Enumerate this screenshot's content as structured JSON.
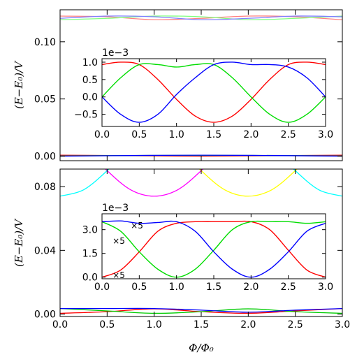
{
  "figure": {
    "xlabel": "Φ/Φ₀",
    "ylabel_top": "(E−E₀)/V",
    "ylabel_bottom": "(E−E₀)/V"
  },
  "chart_data": [
    {
      "type": "line",
      "panel": "top-main",
      "xlim": [
        0,
        3
      ],
      "ylim": [
        -0.004,
        0.128
      ],
      "yticks": [
        "0.00",
        "0.05",
        "0.10"
      ],
      "xticklabels_shown": false,
      "series": [
        {
          "color": "#ff8080",
          "x": [
            0,
            0.5,
            1,
            1.5,
            2,
            2.5,
            3
          ],
          "y": [
            0.1225,
            0.1219,
            0.1193,
            0.1205,
            0.1225,
            0.1219,
            0.1193
          ]
        },
        {
          "color": "#80ff80",
          "x": [
            0,
            0.5,
            1,
            1.5,
            2,
            2.5,
            3
          ],
          "y": [
            0.1193,
            0.1205,
            0.1225,
            0.1219,
            0.1193,
            0.1205,
            0.1225
          ]
        },
        {
          "color": "#8080ff",
          "x": [
            0,
            0.5,
            1,
            1.5,
            2,
            2.5,
            3
          ],
          "y": [
            0.1205,
            0.1225,
            0.1219,
            0.1193,
            0.1205,
            0.1225,
            0.1219
          ]
        },
        {
          "color": "#ff0000",
          "x": [
            0,
            1.5,
            3
          ],
          "y": [
            0.0008,
            0.0001,
            0.0008
          ]
        },
        {
          "color": "#00cc00",
          "x": [
            0,
            1.5,
            3
          ],
          "y": [
            0.0002,
            0.0007,
            0.0002
          ]
        },
        {
          "color": "#0000ff",
          "x": [
            0,
            1.5,
            3
          ],
          "y": [
            0.0,
            0.0008,
            0.0
          ]
        }
      ]
    },
    {
      "type": "line",
      "panel": "top-inset",
      "offset_text": "1e−3",
      "xlim": [
        0,
        3
      ],
      "ylim": [
        -0.85,
        1.1
      ],
      "xticks": [
        "0.0",
        "0.5",
        "1.0",
        "1.5",
        "2.0",
        "2.5",
        "3.0"
      ],
      "yticks": [
        "−0.5",
        "0.0",
        "0.5",
        "1.0"
      ],
      "series": [
        {
          "color": "#ff0000",
          "x": [
            0,
            0.25,
            0.5,
            0.75,
            1,
            1.25,
            1.5,
            1.75,
            2,
            2.25,
            2.5,
            2.75,
            3
          ],
          "y": [
            0.93,
            1.0,
            0.93,
            0.5,
            -0.07,
            -0.55,
            -0.73,
            -0.55,
            -0.07,
            0.5,
            0.93,
            1.0,
            0.93
          ]
        },
        {
          "color": "#00dd00",
          "x": [
            0,
            0.25,
            0.5,
            0.75,
            1,
            1.25,
            1.5,
            1.75,
            2,
            2.25,
            2.5,
            2.75,
            3
          ],
          "y": [
            0.0,
            0.55,
            0.93,
            0.93,
            0.86,
            0.93,
            0.93,
            0.55,
            0.0,
            -0.5,
            -0.73,
            -0.5,
            0.0
          ]
        },
        {
          "color": "#0000ff",
          "x": [
            0,
            0.25,
            0.5,
            0.75,
            1,
            1.25,
            1.5,
            1.75,
            2,
            2.25,
            2.5,
            2.75,
            3
          ],
          "y": [
            0.0,
            -0.5,
            -0.73,
            -0.5,
            0.07,
            0.55,
            0.93,
            1.0,
            0.93,
            0.93,
            0.86,
            0.55,
            0.0
          ]
        }
      ]
    },
    {
      "type": "line",
      "panel": "bottom-main",
      "xlim": [
        0,
        3
      ],
      "ylim": [
        -0.0015,
        0.091
      ],
      "xticks": [
        "0.0",
        "0.5",
        "1.0",
        "1.5",
        "2.0",
        "2.5",
        "3.0"
      ],
      "yticks": [
        "0.00",
        "0.04",
        "0.08"
      ],
      "series": [
        {
          "color": "#ff00ff",
          "x": [
            0,
            0.25,
            0.5,
            0.75,
            1,
            1.25,
            1.5,
            1.75,
            2
          ],
          "y": [
            0.122,
            0.105,
            0.09,
            0.078,
            0.074,
            0.078,
            0.09,
            0.105,
            0.122
          ]
        },
        {
          "color": "#ffff00",
          "x": [
            1,
            1.25,
            1.5,
            1.75,
            2,
            2.25,
            2.5,
            2.75,
            3
          ],
          "y": [
            0.122,
            0.105,
            0.09,
            0.078,
            0.074,
            0.078,
            0.09,
            0.105,
            0.122
          ]
        },
        {
          "color": "#00ffff",
          "x": [
            0,
            0.25,
            0.5,
            0.75,
            1
          ],
          "y": [
            0.074,
            0.078,
            0.09,
            0.105,
            0.122
          ]
        },
        {
          "color": "#00ffff",
          "x": [
            2,
            2.25,
            2.5,
            2.75,
            3
          ],
          "y": [
            0.122,
            0.105,
            0.09,
            0.078,
            0.074
          ]
        },
        {
          "color": "#ff0000",
          "x": [
            0,
            0.5,
            1,
            1.5,
            2,
            2.5,
            3
          ],
          "y": [
            0.0005,
            0.0015,
            0.0033,
            0.0015,
            0.0005,
            0.002,
            0.0035
          ]
        },
        {
          "color": "#00cc00",
          "x": [
            0,
            0.5,
            1,
            1.5,
            2,
            2.5,
            3
          ],
          "y": [
            0.0035,
            0.002,
            0.0005,
            0.0015,
            0.0033,
            0.0015,
            0.0005
          ]
        },
        {
          "color": "#0000ff",
          "x": [
            0,
            0.5,
            1,
            1.5,
            2,
            2.5,
            3
          ],
          "y": [
            0.0035,
            0.0035,
            0.0035,
            0.0025,
            0.0012,
            0.0025,
            0.0035
          ]
        }
      ]
    },
    {
      "type": "line",
      "panel": "bottom-inset",
      "offset_text": "1e−3",
      "xlim": [
        0,
        3
      ],
      "ylim": [
        -0.1,
        4.0
      ],
      "xticks": [
        "0.0",
        "0.5",
        "1.0",
        "1.5",
        "2.0",
        "2.5",
        "3.0"
      ],
      "yticks": [
        "0.0",
        "1.5",
        "3.0"
      ],
      "annotations": [
        "×5",
        "×5",
        "×5"
      ],
      "series": [
        {
          "color": "#ff0000",
          "x": [
            0,
            0.25,
            0.5,
            0.75,
            1,
            1.25,
            1.5,
            1.75,
            2,
            2.25,
            2.5,
            2.75,
            3
          ],
          "y": [
            0.0,
            0.45,
            1.6,
            2.9,
            3.4,
            3.5,
            3.5,
            3.5,
            3.5,
            3.0,
            1.7,
            0.45,
            0.0
          ]
        },
        {
          "color": "#00dd00",
          "x": [
            0,
            0.25,
            0.5,
            0.75,
            1,
            1.25,
            1.5,
            1.75,
            2,
            2.25,
            2.5,
            2.75,
            3
          ],
          "y": [
            3.5,
            2.9,
            1.6,
            0.5,
            0.0,
            0.5,
            1.7,
            3.0,
            3.5,
            3.5,
            3.5,
            3.4,
            3.5
          ]
        },
        {
          "color": "#0000ff",
          "x": [
            0,
            0.25,
            0.5,
            0.75,
            1,
            1.25,
            1.5,
            1.75,
            2,
            2.25,
            2.5,
            2.75,
            3
          ],
          "y": [
            3.5,
            3.55,
            3.4,
            3.45,
            3.5,
            2.9,
            1.6,
            0.5,
            0.0,
            0.5,
            1.6,
            2.9,
            3.4
          ]
        }
      ]
    }
  ]
}
